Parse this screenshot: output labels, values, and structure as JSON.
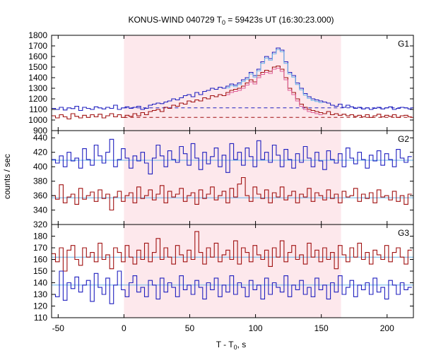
{
  "chart_data": {
    "type": "line",
    "title": "KONUS-WIND 040729 T",
    "title_sub": "0",
    "title_rest": " = 59423s UT (16:30:23.000)",
    "xlabel": "T - T",
    "xlabel_sub": "0",
    "xlabel_rest": ", s",
    "ylabel": "counts / sec",
    "xlim": [
      -55,
      220
    ],
    "x_ticks": [
      -50,
      0,
      50,
      100,
      150,
      200
    ],
    "highlight_interval": [
      0,
      165
    ],
    "colors": {
      "blue": "#1f1fbf",
      "red": "#a01010",
      "light_blue": "#66b2e8",
      "pink": "#e0609a",
      "highlight": "#fde8ec",
      "dashed_blue": "#1f1fbf",
      "dashed_red": "#a01010"
    },
    "panels": [
      {
        "label": "G1",
        "ylim": [
          900,
          1800
        ],
        "y_ticks": [
          900,
          1000,
          1100,
          1200,
          1300,
          1400,
          1500,
          1600,
          1700,
          1800
        ],
        "bin_width": 2.944,
        "x_start": -55,
        "background_levels": [
          {
            "series": "blue",
            "value": 1115,
            "style": "dashed",
            "from": 0,
            "to": 220
          },
          {
            "series": "red",
            "value": 1025,
            "style": "dashed",
            "from": 0,
            "to": 220
          }
        ],
        "series": [
          {
            "color": "blue",
            "values": [
              1110,
              1100,
              1120,
              1095,
              1115,
              1108,
              1130,
              1090,
              1120,
              1110,
              1100,
              1125,
              1115,
              1105,
              1120,
              1110,
              1140,
              1100,
              1115,
              1125,
              1110,
              1120,
              1130,
              1100,
              1110,
              1140,
              1150,
              1160,
              1155,
              1170,
              1180,
              1200,
              1190,
              1210,
              1230,
              1240,
              1220,
              1260,
              1240,
              1270,
              1280,
              1300,
              1290,
              1310,
              1300,
              1320,
              1340,
              1330,
              1350,
              1380,
              1400,
              1450,
              1420,
              1480,
              1550,
              1600,
              1580,
              1640,
              1680,
              1660,
              1550,
              1450,
              1420,
              1350,
              1300,
              1250,
              1220,
              1200,
              1190,
              1180,
              1170,
              1160,
              1140,
              1130,
              1150,
              1120,
              1140,
              1125,
              1110,
              1120,
              1105,
              1115,
              1100,
              1110,
              1120,
              1105,
              1115,
              1125,
              1100,
              1110,
              1120,
              1115,
              1105
            ]
          },
          {
            "color": "red",
            "values": [
              1040,
              1020,
              1050,
              1030,
              1010,
              1060,
              1035,
              1020,
              1045,
              1025,
              1050,
              1030,
              1055,
              1020,
              1040,
              1060,
              1030,
              1050,
              1025,
              1045,
              1035,
              1060,
              1040,
              1070,
              1050,
              1080,
              1090,
              1100,
              1080,
              1120,
              1110,
              1140,
              1130,
              1160,
              1150,
              1180,
              1170,
              1190,
              1180,
              1210,
              1200,
              1230,
              1220,
              1240,
              1230,
              1260,
              1280,
              1290,
              1300,
              1320,
              1350,
              1380,
              1360,
              1420,
              1450,
              1470,
              1460,
              1500,
              1510,
              1480,
              1400,
              1300,
              1260,
              1200,
              1150,
              1120,
              1100,
              1090,
              1080,
              1070,
              1060,
              1080,
              1050,
              1060,
              1045,
              1055,
              1040,
              1050,
              1035,
              1045,
              1030,
              1050,
              1025,
              1040,
              1055,
              1030,
              1045,
              1035,
              1050,
              1025,
              1040,
              1045,
              1030
            ]
          }
        ]
      },
      {
        "label": "G2",
        "ylim": [
          320,
          450
        ],
        "y_ticks": [
          320,
          340,
          360,
          380,
          400,
          420,
          440
        ],
        "bin_width": 2.944,
        "x_start": -55,
        "background_levels": [
          {
            "series": "blue",
            "value": 409,
            "style": "solid",
            "from": -55,
            "to": 220
          },
          {
            "series": "red",
            "value": 357,
            "style": "solid",
            "from": -55,
            "to": 220
          }
        ],
        "series": [
          {
            "color": "blue",
            "values": [
              410,
              405,
              415,
              400,
              420,
              408,
              412,
              398,
              425,
              410,
              402,
              430,
              415,
              405,
              420,
              438,
              400,
              410,
              425,
              412,
              398,
              415,
              408,
              420,
              405,
              390,
              412,
              430,
              415,
              400,
              422,
              410,
              406,
              428,
              418,
              402,
              432,
              412,
              396,
              420,
              404,
              414,
              426,
              400,
              416,
              392,
              432,
              410,
              420,
              402,
              426,
              414,
              400,
              436,
              410,
              420,
              406,
              430,
              416,
              400,
              424,
              410,
              398,
              418,
              406,
              428,
              412,
              400,
              420,
              408,
              396,
              422,
              410,
              405,
              418,
              400,
              426,
              412,
              404,
              420,
              410,
              398,
              416,
              408,
              422,
              402,
              418,
              410,
              400,
              424,
              412,
              406,
              414
            ]
          },
          {
            "color": "red",
            "values": [
              360,
              355,
              375,
              350,
              358,
              362,
              348,
              370,
              355,
              360,
              365,
              352,
              368,
              356,
              362,
              340,
              358,
              366,
              352,
              360,
              364,
              350,
              372,
              356,
              360,
              368,
              354,
              362,
              374,
              350,
              366,
              358,
              362,
              370,
              352,
              360,
              364,
              348,
              368,
              356,
              362,
              372,
              354,
              360,
              366,
              350,
              370,
              358,
              376,
              385,
              360,
              352,
              372,
              362,
              356,
              368,
              350,
              364,
              358,
              372,
              354,
              360,
              366,
              350,
              362,
              358,
              370,
              352,
              364,
              360,
              354,
              368,
              356,
              362,
              350,
              366,
              358,
              360,
              370,
              352,
              362,
              356,
              364,
              350,
              368,
              358,
              360,
              354,
              366,
              352,
              360,
              348,
              362
            ]
          }
        ]
      },
      {
        "label": "G3",
        "ylim": [
          110,
          190
        ],
        "y_ticks": [
          110,
          120,
          130,
          140,
          150,
          160,
          170,
          180
        ],
        "bin_width": 2.944,
        "x_start": -55,
        "background_levels": [
          {
            "series": "red",
            "value": 162,
            "style": "solid",
            "from": -55,
            "to": 220
          },
          {
            "series": "blue",
            "value": 138,
            "style": "solid",
            "from": -55,
            "to": 220
          }
        ],
        "series": [
          {
            "color": "red",
            "values": [
              165,
              158,
              170,
              150,
              168,
              172,
              160,
              155,
              170,
              162,
              166,
              158,
              174,
              160,
              164,
              152,
              170,
              166,
              158,
              172,
              162,
              156,
              168,
              160,
              174,
              158,
              166,
              178,
              160,
              170,
              162,
              156,
              172,
              164,
              158,
              168,
              160,
              184,
              166,
              156,
              170,
              162,
              174,
              158,
              164,
              168,
              160,
              176,
              156,
              170,
              166,
              158,
              172,
              164,
              160,
              168,
              154,
              170,
              162,
              176,
              158,
              166,
              172,
              160,
              164,
              156,
              174,
              162,
              168,
              158,
              170,
              160,
              166,
              152,
              172,
              164,
              158,
              170,
              162,
              174,
              160,
              166,
              156,
              168,
              164,
              160,
              172,
              158,
              166,
              170,
              162,
              156,
              168
            ]
          },
          {
            "color": "blue",
            "values": [
              130,
              128,
              150,
              125,
              140,
              135,
              145,
              132,
              138,
              142,
              124,
              148,
              136,
              130,
              144,
              122,
              138,
              150,
              134,
              128,
              140,
              146,
              132,
              136,
              128,
              142,
              138,
              126,
              144,
              132,
              140,
              136,
              128,
              146,
              134,
              138,
              130,
              142,
              136,
              126,
              140,
              134,
              144,
              128,
              138,
              132,
              146,
              130,
              140,
              136,
              128,
              142,
              134,
              138,
              126,
              144,
              130,
              140,
              136,
              132,
              146,
              128,
              138,
              134,
              142,
              130,
              136,
              128,
              144,
              134,
              138,
              126,
              140,
              132,
              146,
              130,
              136,
              142,
              128,
              138,
              134,
              140,
              130,
              144,
              132,
              136,
              126,
              142,
              138,
              130,
              140,
              134,
              136
            ]
          }
        ]
      }
    ]
  }
}
